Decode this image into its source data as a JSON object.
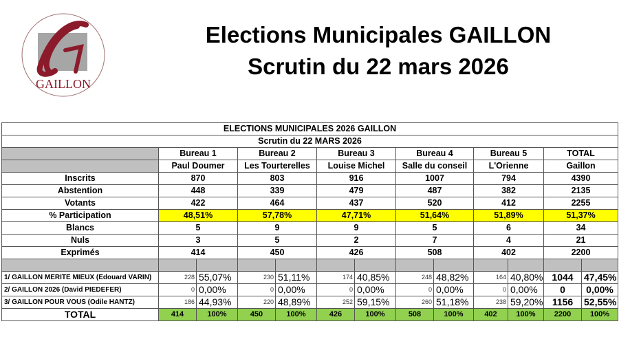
{
  "logo_text": "GAILLON",
  "header": {
    "line1": "Elections Municipales GAILLON",
    "line2": "Scrutin du 22 mars 2026"
  },
  "table": {
    "title": "ELECTIONS MUNICIPALES 2026 GAILLON",
    "subtitle": "Scrutin du 22 MARS 2026",
    "bureaus": [
      "Bureau 1",
      "Bureau 2",
      "Bureau 3",
      "Bureau 4",
      "Bureau 5",
      "TOTAL"
    ],
    "locations": [
      "Paul Doumer",
      "Les Tourterelles",
      "Louise Michel",
      "Salle du conseil",
      "L'Orienne",
      "Gaillon"
    ],
    "stats": [
      {
        "label": "Inscrits",
        "values": [
          "870",
          "803",
          "916",
          "1007",
          "794",
          "4390"
        ]
      },
      {
        "label": "Abstention",
        "values": [
          "448",
          "339",
          "479",
          "487",
          "382",
          "2135"
        ]
      },
      {
        "label": "Votants",
        "values": [
          "422",
          "464",
          "437",
          "520",
          "412",
          "2255"
        ]
      },
      {
        "label": "% Participation",
        "values": [
          "48,51%",
          "57,78%",
          "47,71%",
          "51,64%",
          "51,89%",
          "51,37%"
        ],
        "highlight": true
      },
      {
        "label": "Blancs",
        "values": [
          "5",
          "9",
          "9",
          "5",
          "6",
          "34"
        ]
      },
      {
        "label": "Nuls",
        "values": [
          "3",
          "5",
          "2",
          "7",
          "4",
          "21"
        ]
      },
      {
        "label": "Exprimés",
        "values": [
          "414",
          "450",
          "426",
          "508",
          "402",
          "2200"
        ]
      }
    ],
    "lists": [
      {
        "label": "1/ GAILLON MERITE MIEUX (Edouard VARIN)",
        "votes": [
          "228",
          "230",
          "174",
          "248",
          "164",
          "1044"
        ],
        "pct": [
          "55,07%",
          "51,11%",
          "40,85%",
          "48,82%",
          "40,80%",
          "47,45%"
        ]
      },
      {
        "label": "2/ GAILLON 2026 (David PIEDEFER)",
        "votes": [
          "0",
          "0",
          "0",
          "0",
          "0",
          "0"
        ],
        "pct": [
          "0,00%",
          "0,00%",
          "0,00%",
          "0,00%",
          "0,00%",
          "0,00%"
        ]
      },
      {
        "label": "3/ GAILLON POUR VOUS (Odile HANTZ)",
        "votes": [
          "186",
          "220",
          "252",
          "260",
          "238",
          "1156"
        ],
        "pct": [
          "44,93%",
          "48,89%",
          "59,15%",
          "51,18%",
          "59,20%",
          "52,55%"
        ]
      }
    ],
    "total": {
      "label": "TOTAL",
      "votes": [
        "414",
        "450",
        "426",
        "508",
        "402",
        "2200"
      ],
      "pct": [
        "100%",
        "100%",
        "100%",
        "100%",
        "100%",
        "100%"
      ]
    }
  }
}
